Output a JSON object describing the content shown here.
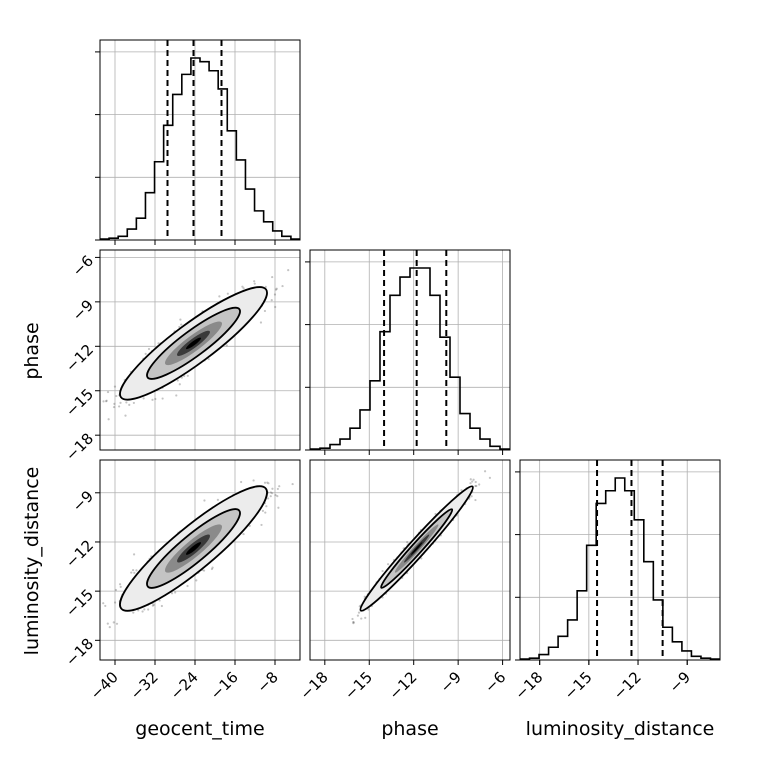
{
  "chart_data": {
    "type": "corner",
    "parameters": [
      "geocent_time",
      "phase",
      "luminosity_distance"
    ],
    "axis_labels": {
      "x": [
        "geocent_time",
        "phase",
        "luminosity_distance"
      ],
      "y": [
        "phase",
        "luminosity_distance"
      ]
    },
    "ticks": {
      "geocent_time": [
        "−40",
        "−32",
        "−24",
        "−16",
        "−8"
      ],
      "phase": [
        "−18",
        "−15",
        "−12",
        "−9",
        "−6"
      ],
      "luminosity_distance": [
        "−18",
        "−15",
        "−12",
        "−9"
      ]
    },
    "ranges": {
      "geocent_time": [
        -43,
        -3
      ],
      "phase": [
        -19,
        -5.5
      ],
      "luminosity_distance": [
        -19.2,
        -7
      ]
    },
    "quantiles": {
      "geocent_time": [
        -29.5,
        -24.3,
        -18.7
      ],
      "phase": [
        -14.0,
        -11.8,
        -9.8
      ],
      "luminosity_distance": [
        -14.5,
        -12.4,
        -10.5
      ]
    },
    "histograms": {
      "geocent_time": [
        0.005,
        0.01,
        0.02,
        0.06,
        0.12,
        0.26,
        0.43,
        0.63,
        0.8,
        0.91,
        1.0,
        0.98,
        0.93,
        0.83,
        0.6,
        0.44,
        0.28,
        0.16,
        0.1,
        0.05,
        0.02,
        0.005
      ],
      "phase": [
        0.005,
        0.01,
        0.03,
        0.06,
        0.12,
        0.22,
        0.38,
        0.65,
        0.85,
        0.95,
        1.0,
        1.0,
        0.85,
        0.62,
        0.4,
        0.2,
        0.12,
        0.06,
        0.02,
        0.005
      ],
      "luminosity_distance": [
        0.005,
        0.01,
        0.03,
        0.07,
        0.13,
        0.22,
        0.38,
        0.63,
        0.86,
        0.93,
        1.0,
        0.93,
        0.77,
        0.54,
        0.33,
        0.18,
        0.1,
        0.05,
        0.02,
        0.01,
        0.005
      ]
    },
    "pairs": [
      {
        "x": "geocent_time",
        "y": "phase",
        "mean": [
          -24.3,
          -11.8
        ],
        "std": [
          6.0,
          1.55
        ],
        "corr": 0.9
      },
      {
        "x": "geocent_time",
        "y": "luminosity_distance",
        "mean": [
          -24.3,
          -12.4
        ],
        "std": [
          6.0,
          1.55
        ],
        "corr": 0.9
      },
      {
        "x": "phase",
        "y": "luminosity_distance",
        "mean": [
          -11.8,
          -12.4
        ],
        "std": [
          1.55,
          1.55
        ],
        "corr": 0.98
      }
    ],
    "grid": true,
    "contour_levels": 2
  }
}
